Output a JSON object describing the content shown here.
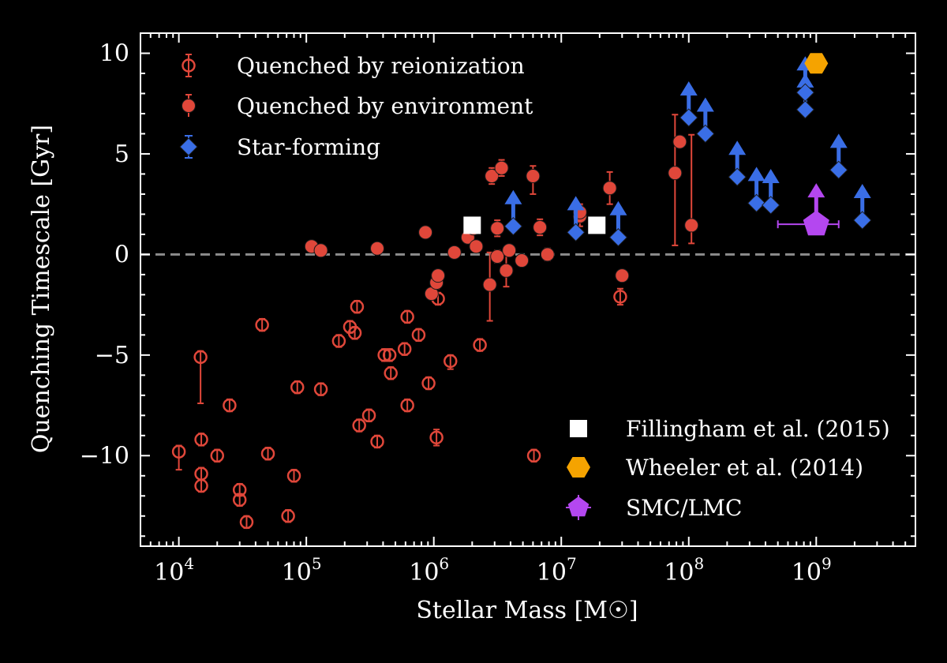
{
  "chart_data": {
    "type": "scatter",
    "xlabel": "Stellar Mass [M☉]",
    "ylabel": "Quenching Timescale [Gyr]",
    "x_scale": "log",
    "xlim": [
      5000,
      6000000000
    ],
    "ylim": [
      -14.5,
      11
    ],
    "x_ticks": [
      {
        "base": "10",
        "exp": "4",
        "value": 10000
      },
      {
        "base": "10",
        "exp": "5",
        "value": 100000
      },
      {
        "base": "10",
        "exp": "6",
        "value": 1000000
      },
      {
        "base": "10",
        "exp": "7",
        "value": 10000000
      },
      {
        "base": "10",
        "exp": "8",
        "value": 100000000
      },
      {
        "base": "10",
        "exp": "9",
        "value": 1000000000
      }
    ],
    "y_ticks": [
      {
        "label": "10",
        "value": 10
      },
      {
        "label": "5",
        "value": 5
      },
      {
        "label": "0",
        "value": 0
      },
      {
        "label": "−5",
        "value": -5
      },
      {
        "label": "−10",
        "value": -10
      }
    ],
    "reference_line": {
      "y": 0,
      "style": "dashed",
      "color": "#8c8c8c"
    },
    "grid": false,
    "legends": {
      "upper_left": [
        "Quenched by reionization",
        "Quenched by environment",
        "Star-forming"
      ],
      "lower_right": [
        "Fillingham et al. (2015)",
        "Wheeler et al. (2014)",
        "SMC/LMC"
      ]
    },
    "colors": {
      "reionization": "#e0473a",
      "environment": "#e0473a",
      "star_forming": "#3a6ee6",
      "fillingham": "#ffffff",
      "wheeler": "#f5a300",
      "smc_lmc": "#b447f0"
    },
    "series": [
      {
        "name": "Quenched by reionization",
        "marker": "open-circle",
        "points": [
          [
            10000,
            -9.8,
            0.9,
            0.3
          ],
          [
            14800,
            -5.1,
            2.3,
            0.3
          ],
          [
            15000,
            -9.2,
            0.3,
            0.3
          ],
          [
            15000,
            -10.9,
            0.3,
            0.3
          ],
          [
            15000,
            -11.5,
            0.3,
            0.3
          ],
          [
            20000,
            -10.0,
            0.3,
            0.3
          ],
          [
            25000,
            -7.5,
            0.3,
            0.3
          ],
          [
            30000,
            -11.7,
            0.3,
            0.3
          ],
          [
            30000,
            -12.2,
            0.3,
            0.3
          ],
          [
            34000,
            -13.3,
            0.3,
            0.3
          ],
          [
            45000,
            -3.5,
            0.3,
            0.3
          ],
          [
            50000,
            -9.9,
            0.3,
            0.3
          ],
          [
            72000,
            -13.0,
            0.3,
            0.3
          ],
          [
            80000,
            -11.0,
            0.3,
            0.3
          ],
          [
            85000,
            -6.6,
            0.3,
            0.3
          ],
          [
            130000,
            -6.7,
            0.3,
            0.3
          ],
          [
            180000,
            -4.3,
            0.3,
            0.3
          ],
          [
            220000,
            -3.6,
            0.3,
            0.3
          ],
          [
            240000,
            -3.9,
            0.3,
            0.3
          ],
          [
            250000,
            -2.6,
            0.3,
            0.3
          ],
          [
            260000,
            -8.5,
            0.3,
            0.3
          ],
          [
            310000,
            -8.0,
            0.3,
            0.3
          ],
          [
            360000,
            -9.3,
            0.3,
            0.3
          ],
          [
            410000,
            -5.0,
            0.3,
            0.3
          ],
          [
            450000,
            -5.0,
            0.3,
            0.3
          ],
          [
            460000,
            -5.9,
            0.3,
            0.3
          ],
          [
            590000,
            -4.7,
            0.3,
            0.3
          ],
          [
            620000,
            -3.1,
            0.3,
            0.3
          ],
          [
            620000,
            -7.5,
            0.3,
            0.3
          ],
          [
            760000,
            -4.0,
            0.3,
            0.3
          ],
          [
            910000,
            -6.4,
            0.3,
            0.3
          ],
          [
            1050000,
            -9.1,
            0.4,
            0.4
          ],
          [
            1080000,
            -2.2,
            0.3,
            0.3
          ],
          [
            1350000,
            -5.3,
            0.4,
            0.3
          ],
          [
            2300000,
            -4.5,
            0.3,
            0.3
          ],
          [
            6100000,
            -10.0,
            0.3,
            0.3
          ],
          [
            29000000,
            -2.1,
            0.4,
            0.4
          ]
        ]
      },
      {
        "name": "Quenched by environment",
        "marker": "filled-circle",
        "points": [
          [
            110000,
            0.4,
            0.1,
            0.1
          ],
          [
            130000,
            0.2,
            0.1,
            0.1
          ],
          [
            360000,
            0.3,
            0.1,
            0.1
          ],
          [
            860000,
            1.1,
            0.1,
            0.1
          ],
          [
            960000,
            -1.95,
            0.2,
            0.2
          ],
          [
            1050000,
            -1.4,
            0.3,
            0.3
          ],
          [
            1080000,
            -1.05,
            0.2,
            0.2
          ],
          [
            1450000,
            0.1,
            0.1,
            0.1
          ],
          [
            1850000,
            0.85,
            0.1,
            0.1
          ],
          [
            2050000,
            1.3,
            0.2,
            0.2
          ],
          [
            2150000,
            0.4,
            0.1,
            0.1
          ],
          [
            2750000,
            -1.5,
            1.8,
            1.6
          ],
          [
            2850000,
            3.9,
            0.4,
            0.4
          ],
          [
            3150000,
            1.3,
            0.4,
            0.4
          ],
          [
            3150000,
            -0.1,
            0.3,
            0.3
          ],
          [
            3400000,
            4.3,
            0.4,
            0.4
          ],
          [
            3700000,
            -0.8,
            0.8,
            1.0
          ],
          [
            3900000,
            0.2,
            0.1,
            0.1
          ],
          [
            4900000,
            -0.3,
            0.2,
            0.2
          ],
          [
            6000000,
            3.9,
            0.9,
            0.5
          ],
          [
            6800000,
            1.35,
            0.4,
            0.4
          ],
          [
            7800000,
            0.0,
            0.3,
            0.3
          ],
          [
            14000000,
            1.9,
            0.5,
            0.5
          ],
          [
            14000000,
            2.1,
            0.4,
            0.4
          ],
          [
            24000000,
            3.3,
            0.8,
            0.8
          ],
          [
            30000000,
            -1.05,
            0.2,
            0.2
          ],
          [
            78000000,
            4.05,
            3.6,
            2.9
          ],
          [
            85000000,
            5.6,
            0.2,
            0.2
          ],
          [
            105000000,
            1.45,
            0.9,
            4.5
          ]
        ]
      },
      {
        "name": "Star-forming",
        "marker": "diamond-lower-limit",
        "points": [
          [
            4200000,
            1.4
          ],
          [
            13000000,
            1.1
          ],
          [
            28000000,
            0.85
          ],
          [
            100000000,
            6.8
          ],
          [
            135000000,
            6.0
          ],
          [
            240000000,
            3.85
          ],
          [
            340000000,
            2.55
          ],
          [
            440000000,
            2.45
          ],
          [
            820000000,
            7.2
          ],
          [
            820000000,
            8.05
          ],
          [
            1500000000,
            4.2
          ],
          [
            2300000000,
            1.7
          ]
        ]
      },
      {
        "name": "Fillingham et al. (2015)",
        "marker": "square",
        "points": [
          [
            2000000,
            1.45
          ],
          [
            19000000,
            1.45
          ]
        ]
      },
      {
        "name": "Wheeler et al. (2014)",
        "marker": "hexagon",
        "points": [
          [
            1000000000,
            9.5
          ]
        ]
      },
      {
        "name": "SMC/LMC",
        "marker": "pentagon",
        "points": [
          [
            1000000000,
            1.5,
            500000000,
            1500000000
          ]
        ]
      }
    ]
  }
}
